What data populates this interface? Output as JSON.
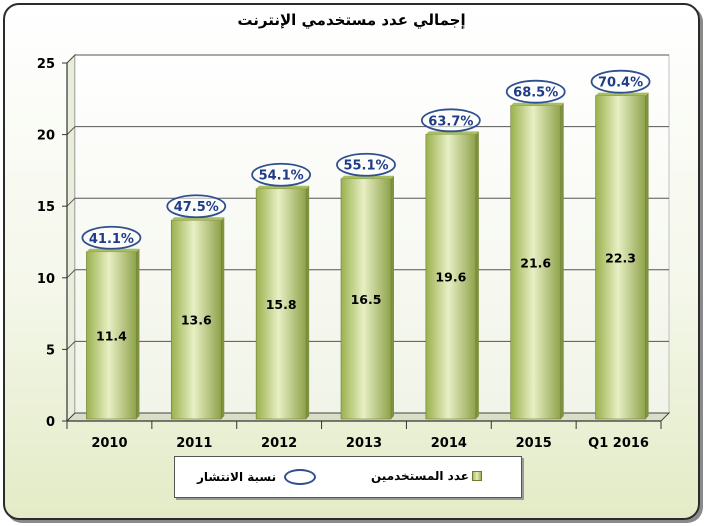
{
  "title": "إجمالي عدد مستخدمي الإنترنت",
  "legend": {
    "users_label": "عدد المستخدمين",
    "penetration_label": "نسبة الانتشار"
  },
  "colors": {
    "bar": "#b9cc7a",
    "bar_highlight": "#e7efc4",
    "bar_shadow": "#8ea24a",
    "ellipse": "#2f4f8f",
    "label": "#1f3c88"
  },
  "chart_data": {
    "type": "bar",
    "title": "إجمالي عدد مستخدمي الإنترنت",
    "categories": [
      "2010",
      "2011",
      "2012",
      "2013",
      "2014",
      "2015",
      "Q1 2016"
    ],
    "series": [
      {
        "name": "عدد المستخدمين",
        "values": [
          11.4,
          13.6,
          15.8,
          16.5,
          19.6,
          21.6,
          22.3
        ]
      },
      {
        "name": "نسبة الانتشار",
        "values": [
          "41.1%",
          "47.5%",
          "54.1%",
          "55.1%",
          "63.7%",
          "68.5%",
          "70.4%"
        ]
      }
    ],
    "ylim": [
      0,
      25
    ],
    "yticks": [
      0,
      5,
      10,
      15,
      20,
      25
    ],
    "grid": true,
    "legend_position": "bottom"
  }
}
